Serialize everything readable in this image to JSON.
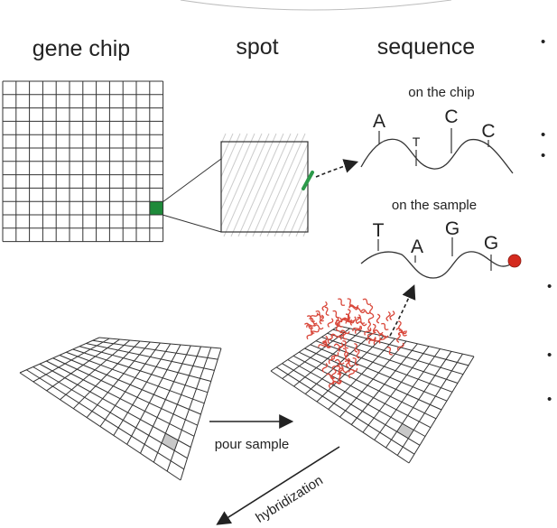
{
  "headings": {
    "gene_chip": "gene chip",
    "spot": "spot",
    "sequence": "sequence"
  },
  "chip_strand": {
    "label": "on the chip",
    "bases": [
      "A",
      "T",
      "C",
      "C"
    ]
  },
  "sample_strand": {
    "label": "on the sample",
    "bases": [
      "T",
      "A",
      "G",
      "G"
    ]
  },
  "arrows": {
    "pour": "pour sample",
    "hybridize": "hybridization"
  },
  "bullets": [
    "•",
    "•",
    "•",
    "•",
    "•",
    "•"
  ],
  "colors": {
    "line": "#333333",
    "highlight_spot": "#1e8a3a",
    "probe": "#2c9a4a",
    "label_dot": "#d42a1e",
    "sample_strand": "#d9473a",
    "cell_shade": "#c8c8c8",
    "hatch": "#cccccc"
  }
}
